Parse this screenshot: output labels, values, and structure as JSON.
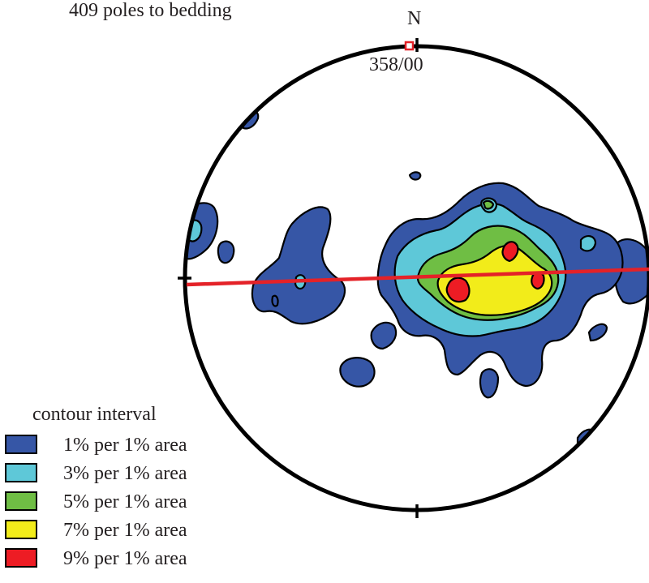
{
  "header": {
    "count_label": "409 poles to bedding",
    "north_label": "N",
    "pole_label": "358/00"
  },
  "legend": {
    "title": "contour interval",
    "items": [
      {
        "label": "1% per 1% area",
        "color": "#3656a6"
      },
      {
        "label": "3% per 1% area",
        "color": "#5ec8d8"
      },
      {
        "label": "5% per 1% area",
        "color": "#6fbe44"
      },
      {
        "label": "7% per 1% area",
        "color": "#f2ec1a"
      },
      {
        "label": "9% per 1% area",
        "color": "#ed1c24"
      }
    ]
  },
  "colors": {
    "outline": "#000000",
    "great_circle": "#e42228",
    "pole_marker": "#e42228"
  }
}
